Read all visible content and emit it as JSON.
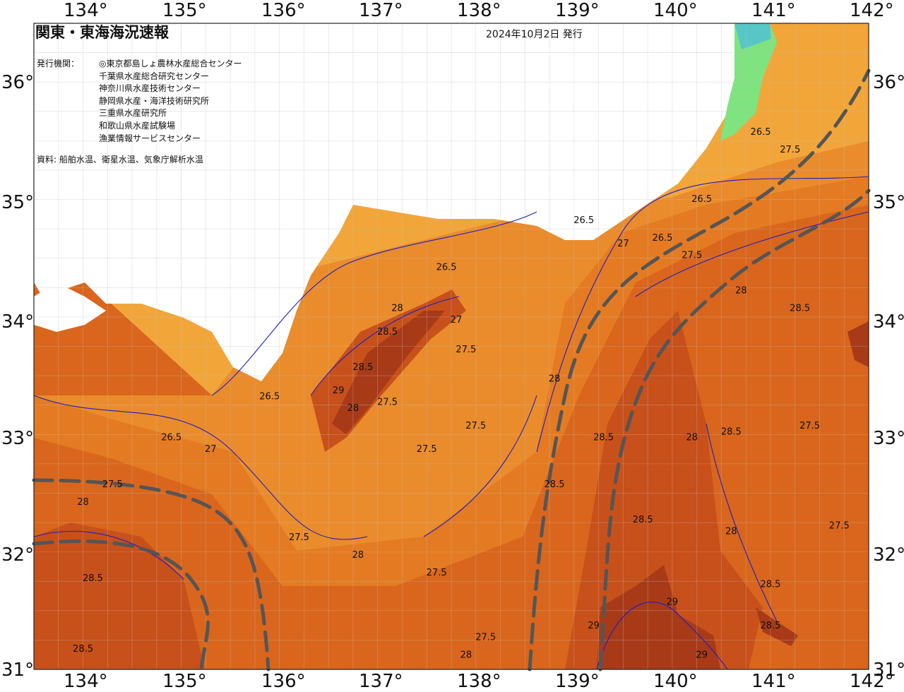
{
  "title": "関東・東海海況速報",
  "issue_date": "2024年10月2日 発行",
  "publisher": {
    "heading": "発行機関：",
    "agencies": [
      "◎東京都島しょ農林水産総合センター",
      "千葉県水産総合研究センター",
      "神奈川県水産技術センター",
      "静岡県水産・海洋技術研究所",
      "三重県水産研究所",
      "和歌山県水産試験場",
      "漁業情報サービスセンター"
    ]
  },
  "source": "資料: 船舶水温、衛星水温、気象庁解析水温",
  "axes": {
    "lon_labels": [
      "134°",
      "135°",
      "136°",
      "137°",
      "138°",
      "139°",
      "140°",
      "141°",
      "142°"
    ],
    "lat_labels": [
      "36°",
      "35°",
      "34°",
      "33°",
      "32°",
      "31°"
    ]
  },
  "map": {
    "type": "sea-surface-temperature",
    "lon_range": [
      133.5,
      142
    ],
    "lat_range": [
      31,
      36.5
    ],
    "grid_step_deg": 0.25,
    "contour_interval_c": 0.5,
    "colors": {
      "land": "#ffffff",
      "sea_25": "#f6c35a",
      "sea_265": "#f2a63a",
      "sea_27": "#ea8c2c",
      "sea_275": "#e47b22",
      "sea_28": "#d9661c",
      "sea_285": "#c8501a",
      "sea_29": "#a83a18",
      "sea_295": "#8c2b14",
      "cold": "#7fe37f",
      "cold2": "#58c6c6",
      "contour": "#1e1ec8",
      "kuroshio": "#555555"
    },
    "sst_labels": [
      {
        "t": "26.5",
        "lon": 140.9,
        "lat": 35.55
      },
      {
        "t": "27.5",
        "lon": 141.2,
        "lat": 35.4
      },
      {
        "t": "26.5",
        "lon": 140.3,
        "lat": 34.98
      },
      {
        "t": "26.5",
        "lon": 139.1,
        "lat": 34.8
      },
      {
        "t": "27",
        "lon": 139.5,
        "lat": 34.6
      },
      {
        "t": "26.5",
        "lon": 139.9,
        "lat": 34.65
      },
      {
        "t": "27.5",
        "lon": 140.2,
        "lat": 34.5
      },
      {
        "t": "26.5",
        "lon": 137.7,
        "lat": 34.4
      },
      {
        "t": "28",
        "lon": 140.7,
        "lat": 34.2
      },
      {
        "t": "28.5",
        "lon": 141.3,
        "lat": 34.05
      },
      {
        "t": "28",
        "lon": 137.2,
        "lat": 34.05
      },
      {
        "t": "27",
        "lon": 137.8,
        "lat": 33.95
      },
      {
        "t": "28.5",
        "lon": 137.1,
        "lat": 33.85
      },
      {
        "t": "27.5",
        "lon": 137.9,
        "lat": 33.7
      },
      {
        "t": "28",
        "lon": 138.8,
        "lat": 33.45
      },
      {
        "t": "28.5",
        "lon": 136.85,
        "lat": 33.55
      },
      {
        "t": "29",
        "lon": 136.6,
        "lat": 33.35
      },
      {
        "t": "28",
        "lon": 136.75,
        "lat": 33.2
      },
      {
        "t": "26.5",
        "lon": 135.9,
        "lat": 33.3
      },
      {
        "t": "27.5",
        "lon": 137.1,
        "lat": 33.25
      },
      {
        "t": "27.5",
        "lon": 138.0,
        "lat": 33.05
      },
      {
        "t": "28.5",
        "lon": 139.3,
        "lat": 32.95
      },
      {
        "t": "27.5",
        "lon": 137.5,
        "lat": 32.85
      },
      {
        "t": "26.5",
        "lon": 134.9,
        "lat": 32.95
      },
      {
        "t": "27",
        "lon": 135.3,
        "lat": 32.85
      },
      {
        "t": "28",
        "lon": 140.2,
        "lat": 32.95
      },
      {
        "t": "28.5",
        "lon": 140.6,
        "lat": 33.0
      },
      {
        "t": "27.5",
        "lon": 141.4,
        "lat": 33.05
      },
      {
        "t": "27.5",
        "lon": 134.3,
        "lat": 32.55
      },
      {
        "t": "28.5",
        "lon": 138.8,
        "lat": 32.55
      },
      {
        "t": "28",
        "lon": 134.0,
        "lat": 32.4
      },
      {
        "t": "27.5",
        "lon": 136.2,
        "lat": 32.1
      },
      {
        "t": "28.5",
        "lon": 139.7,
        "lat": 32.25
      },
      {
        "t": "28",
        "lon": 140.6,
        "lat": 32.15
      },
      {
        "t": "27.5",
        "lon": 141.7,
        "lat": 32.2
      },
      {
        "t": "28.5",
        "lon": 134.1,
        "lat": 31.75
      },
      {
        "t": "28",
        "lon": 136.8,
        "lat": 31.95
      },
      {
        "t": "27.5",
        "lon": 137.6,
        "lat": 31.8
      },
      {
        "t": "28.5",
        "lon": 141.0,
        "lat": 31.7
      },
      {
        "t": "29",
        "lon": 140.0,
        "lat": 31.55
      },
      {
        "t": "28.5",
        "lon": 141.0,
        "lat": 31.35
      },
      {
        "t": "27.5",
        "lon": 138.1,
        "lat": 31.25
      },
      {
        "t": "29",
        "lon": 139.2,
        "lat": 31.35
      },
      {
        "t": "28.5",
        "lon": 134.0,
        "lat": 31.15
      },
      {
        "t": "28",
        "lon": 137.9,
        "lat": 31.1
      },
      {
        "t": "29",
        "lon": 140.3,
        "lat": 31.1
      }
    ]
  }
}
